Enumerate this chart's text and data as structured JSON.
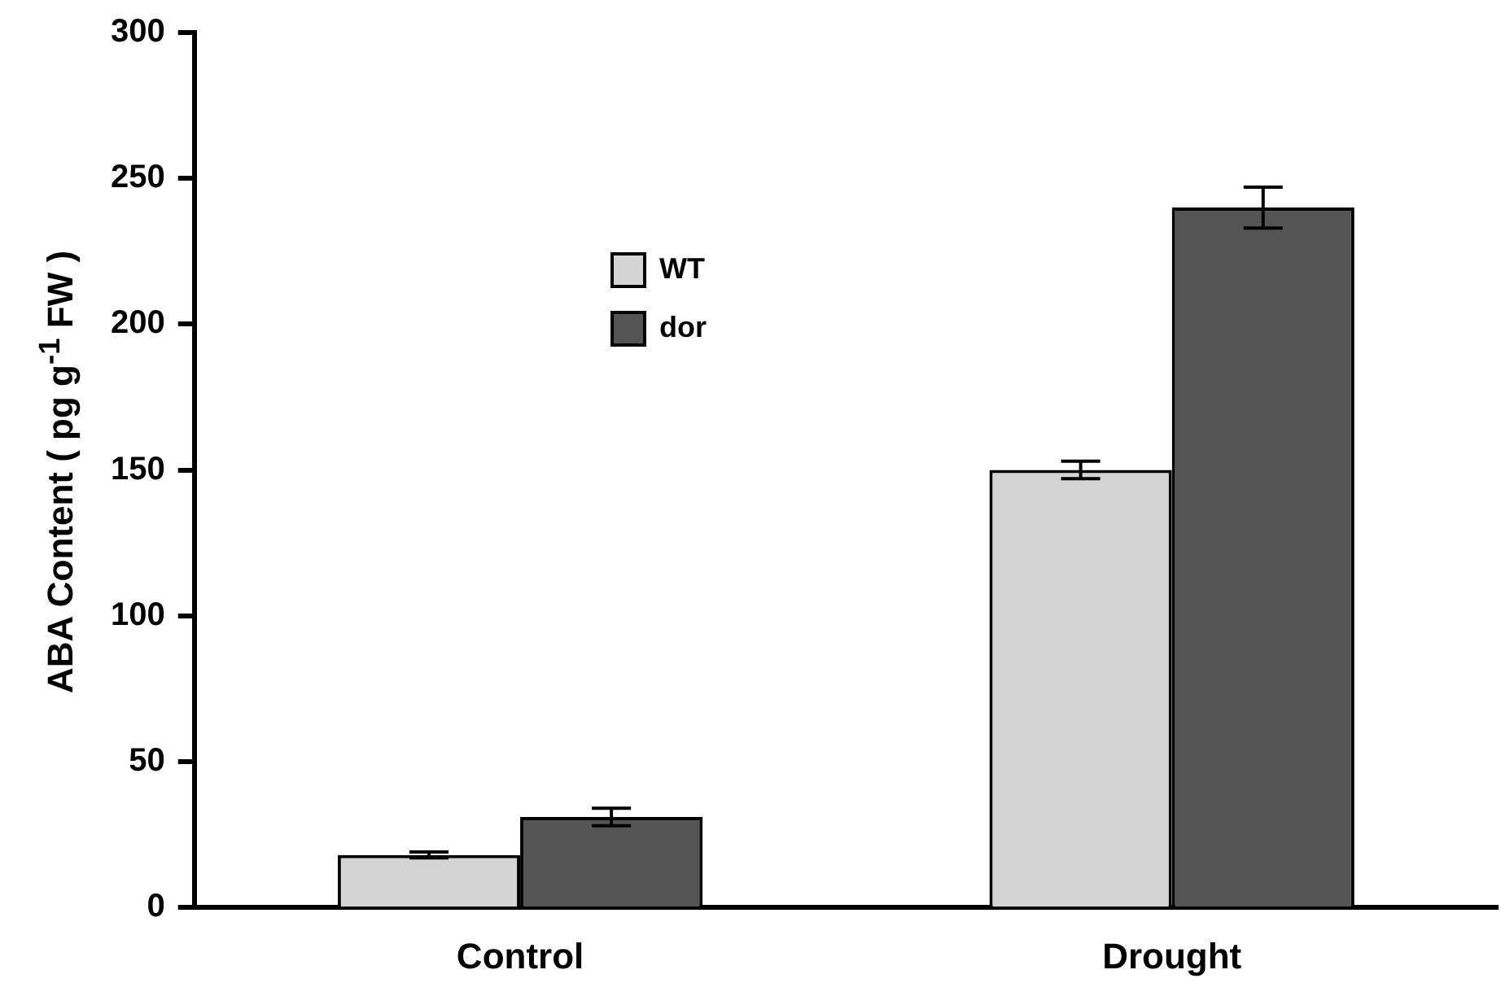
{
  "chart_data": {
    "type": "bar",
    "ylabel": "ABA Content ( pg  g$^{-1}$ FW )",
    "categories": [
      "Control",
      "Drought"
    ],
    "series": [
      {
        "name": "WT",
        "color": "#d4d4d4",
        "values": [
          18,
          150
        ],
        "errors": [
          1,
          3
        ]
      },
      {
        "name": "dor",
        "color": "#555555",
        "values": [
          31,
          240
        ],
        "errors": [
          3,
          7
        ]
      }
    ],
    "ylim": [
      0,
      300
    ],
    "yticks": [
      0,
      50,
      100,
      150,
      200,
      250,
      300
    ],
    "grid": false,
    "legend": "top left"
  }
}
